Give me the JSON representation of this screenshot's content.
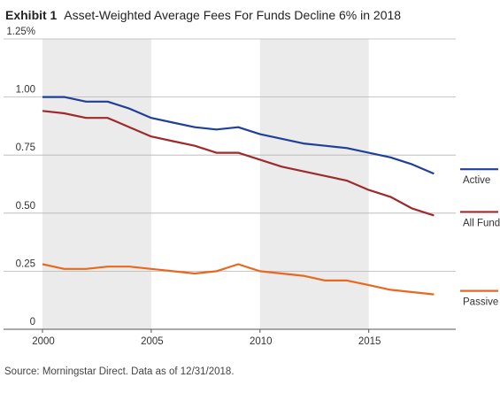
{
  "header": {
    "exhibit_label": "Exhibit 1",
    "title": "Asset-Weighted Average Fees For Funds Decline 6% in 2018"
  },
  "footer": {
    "source": "Source: Morningstar Direct. Data as of 12/31/2018."
  },
  "chart_data": {
    "type": "line",
    "title": "Asset-Weighted Average Fees For Funds Decline 6% in 2018",
    "xlabel": "",
    "ylabel": "",
    "x": [
      2000,
      2001,
      2002,
      2003,
      2004,
      2005,
      2006,
      2007,
      2008,
      2009,
      2010,
      2011,
      2012,
      2013,
      2014,
      2015,
      2016,
      2017,
      2018
    ],
    "series": [
      {
        "name": "Active",
        "color": "#1f3f9a",
        "values": [
          1.0,
          1.0,
          0.98,
          0.98,
          0.95,
          0.91,
          0.89,
          0.87,
          0.86,
          0.87,
          0.84,
          0.82,
          0.8,
          0.79,
          0.78,
          0.76,
          0.74,
          0.71,
          0.67
        ]
      },
      {
        "name": "All Funds",
        "color": "#9e2a2b",
        "values": [
          0.94,
          0.93,
          0.91,
          0.91,
          0.87,
          0.83,
          0.81,
          0.79,
          0.76,
          0.76,
          0.73,
          0.7,
          0.68,
          0.66,
          0.64,
          0.6,
          0.57,
          0.52,
          0.49
        ]
      },
      {
        "name": "Passive",
        "color": "#e8691e",
        "values": [
          0.28,
          0.26,
          0.26,
          0.27,
          0.27,
          0.26,
          0.25,
          0.24,
          0.25,
          0.28,
          0.25,
          0.24,
          0.23,
          0.21,
          0.21,
          0.19,
          0.17,
          0.16,
          0.15
        ]
      }
    ],
    "xlim": [
      2000,
      2019
    ],
    "ylim": [
      0,
      1.25
    ],
    "x_ticks": [
      2000,
      2005,
      2010,
      2015
    ],
    "x_tick_labels": [
      "2000",
      "2005",
      "2010",
      "2015"
    ],
    "y_ticks": [
      0,
      0.25,
      0.5,
      0.75,
      1.0,
      1.25
    ],
    "y_tick_labels": [
      "0",
      "0.25",
      "0.50",
      "0.75",
      "1.00",
      "1.25%"
    ],
    "shaded_bands": [
      [
        2000,
        2005
      ],
      [
        2010,
        2015
      ]
    ],
    "shade_color": "#ebebeb",
    "legend": "right, labels at line ends",
    "grid": "horizontal lines at y ticks"
  }
}
